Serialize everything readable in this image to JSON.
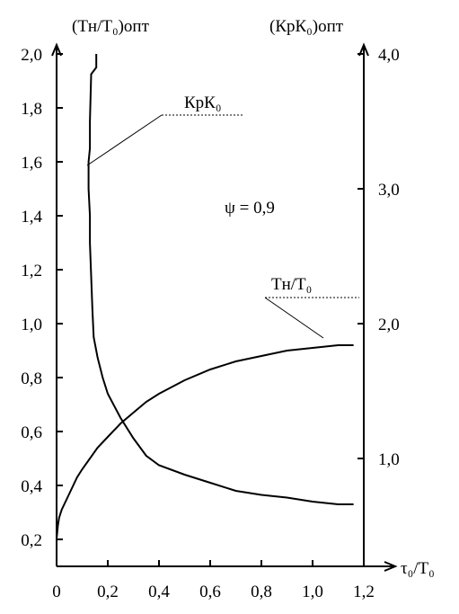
{
  "chart_data": {
    "type": "line",
    "title": "",
    "xlabel": "τ₀/T₀",
    "ylabel_left": "(Tн/T₀)опт",
    "ylabel_right": "(КрК₀)опт",
    "annotation": "ψ = 0,9",
    "xlim": [
      0,
      1.2
    ],
    "ylim_left": [
      0.1,
      2.0
    ],
    "ylim_right": [
      0.2,
      4.0
    ],
    "x_ticks": [
      {
        "value": 0,
        "label": "0"
      },
      {
        "value": 0.2,
        "label": "0,2"
      },
      {
        "value": 0.4,
        "label": "0,4"
      },
      {
        "value": 0.6,
        "label": "0,6"
      },
      {
        "value": 0.8,
        "label": "0,8"
      },
      {
        "value": 1.0,
        "label": "1,0"
      },
      {
        "value": 1.2,
        "label": "1,2"
      }
    ],
    "left_ticks": [
      {
        "value": 0.2,
        "label": "0,2"
      },
      {
        "value": 0.4,
        "label": "0,4"
      },
      {
        "value": 0.6,
        "label": "0,6"
      },
      {
        "value": 0.8,
        "label": "0,8"
      },
      {
        "value": 1.0,
        "label": "1,0"
      },
      {
        "value": 1.2,
        "label": "1,2"
      },
      {
        "value": 1.4,
        "label": "1,4"
      },
      {
        "value": 1.6,
        "label": "1,6"
      },
      {
        "value": 1.8,
        "label": "1,8"
      },
      {
        "value": 2.0,
        "label": "2,0"
      }
    ],
    "right_ticks": [
      {
        "value": 1.0,
        "label": "1,0"
      },
      {
        "value": 2.0,
        "label": "2,0"
      },
      {
        "value": 3.0,
        "label": "3,0"
      },
      {
        "value": 4.0,
        "label": "4,0"
      }
    ],
    "series": [
      {
        "name": "Tн/T₀",
        "axis": "left",
        "points": [
          [
            0.0,
            0.2
          ],
          [
            0.005,
            0.25
          ],
          [
            0.01,
            0.28
          ],
          [
            0.02,
            0.31
          ],
          [
            0.04,
            0.35
          ],
          [
            0.06,
            0.39
          ],
          [
            0.08,
            0.43
          ],
          [
            0.1,
            0.46
          ],
          [
            0.13,
            0.5
          ],
          [
            0.16,
            0.54
          ],
          [
            0.2,
            0.58
          ],
          [
            0.25,
            0.63
          ],
          [
            0.3,
            0.67
          ],
          [
            0.35,
            0.71
          ],
          [
            0.4,
            0.74
          ],
          [
            0.5,
            0.79
          ],
          [
            0.6,
            0.83
          ],
          [
            0.7,
            0.86
          ],
          [
            0.8,
            0.88
          ],
          [
            0.9,
            0.9
          ],
          [
            1.0,
            0.91
          ],
          [
            1.1,
            0.92
          ],
          [
            1.16,
            0.92
          ]
        ]
      },
      {
        "name": "КрК₀",
        "axis": "right",
        "points": [
          [
            0.155,
            4.0
          ],
          [
            0.155,
            3.9
          ],
          [
            0.135,
            3.85
          ],
          [
            0.13,
            3.5
          ],
          [
            0.13,
            3.3
          ],
          [
            0.125,
            3.2
          ],
          [
            0.125,
            3.0
          ],
          [
            0.13,
            2.8
          ],
          [
            0.13,
            2.6
          ],
          [
            0.135,
            2.35
          ],
          [
            0.14,
            2.1
          ],
          [
            0.145,
            1.9
          ],
          [
            0.16,
            1.75
          ],
          [
            0.18,
            1.6
          ],
          [
            0.2,
            1.48
          ],
          [
            0.25,
            1.3
          ],
          [
            0.3,
            1.15
          ],
          [
            0.35,
            1.02
          ],
          [
            0.4,
            0.95
          ],
          [
            0.5,
            0.88
          ],
          [
            0.6,
            0.82
          ],
          [
            0.7,
            0.76
          ],
          [
            0.8,
            0.73
          ],
          [
            0.9,
            0.71
          ],
          [
            1.0,
            0.68
          ],
          [
            1.1,
            0.66
          ],
          [
            1.16,
            0.66
          ]
        ]
      }
    ],
    "grid": false,
    "legend": "none"
  }
}
